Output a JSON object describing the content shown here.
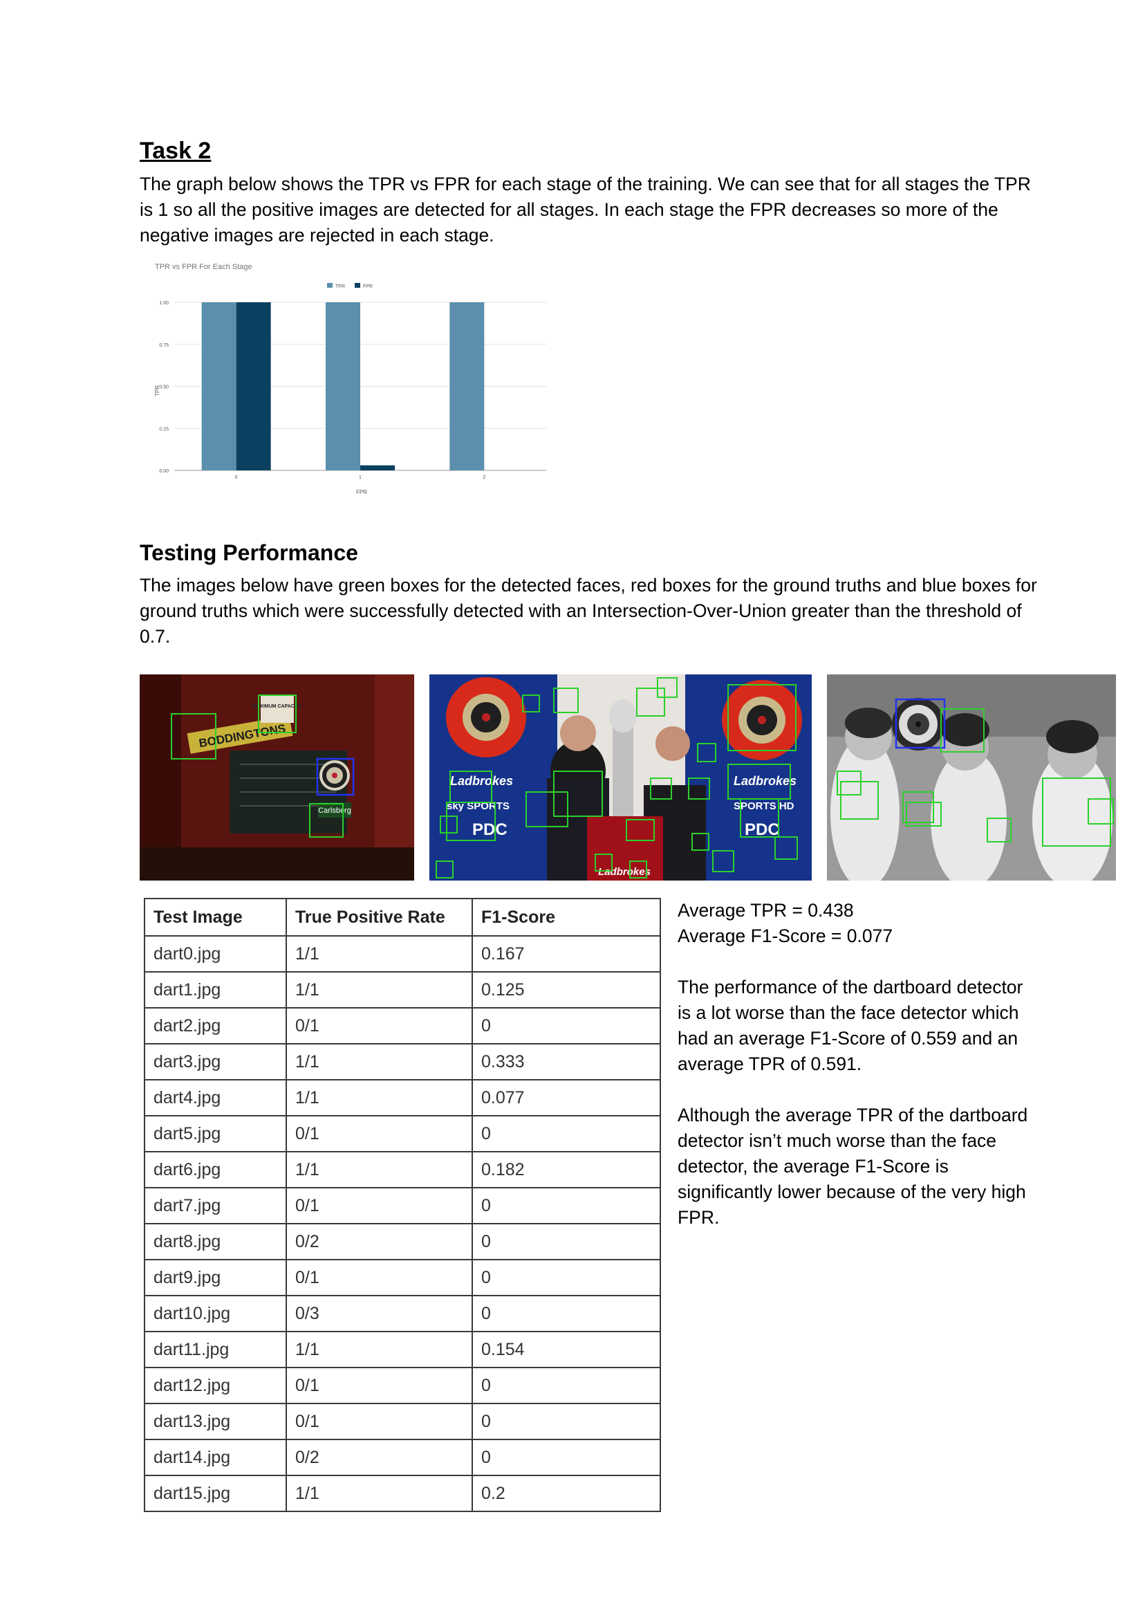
{
  "task2": {
    "heading": "Task 2",
    "paragraph": "The graph below shows the TPR vs FPR for each stage of the training. We can see that for all stages the TPR is 1 so all the positive images are detected for all stages. In each stage the FPR decreases so more of the negative images are rejected in each stage."
  },
  "chart_data": {
    "type": "bar",
    "title": "TPR vs FPR For Each Stage",
    "xlabel": "FPR",
    "ylabel": "TPR",
    "categories": [
      "0",
      "1",
      "2"
    ],
    "series": [
      {
        "name": "TPR",
        "values": [
          1.0,
          1.0,
          1.0
        ],
        "color": "#5b8fad"
      },
      {
        "name": "FPR",
        "values": [
          1.0,
          0.03,
          0.0
        ],
        "color": "#0b4060"
      }
    ],
    "ylim": [
      0,
      1
    ],
    "yticks": [
      "0.00",
      "0.25",
      "0.50",
      "0.75",
      "1.00"
    ],
    "grid": true,
    "legend": "top-center"
  },
  "testing": {
    "heading": "Testing Performance",
    "paragraph": "The images below have green boxes for the detected faces, red boxes for the ground truths and blue boxes for ground truths which were successfully detected with an Intersection-Over-Union greater than the threshold of 0.7."
  },
  "photos": {
    "pub_sign": "BODDINGTONS",
    "pub_sign2": "MAXIMUM CAPACITY",
    "pub_beer": "Carlsberg",
    "stage_brand1": "Ladbrokes",
    "stage_brand2": "Ladbrokes",
    "stage_brand3": "Ladbrokes",
    "stage_sky1": "sky SPORTS",
    "stage_sky2": "SPORTS HD",
    "stage_pdc1": "PDC",
    "stage_pdc2": "PDC"
  },
  "table": {
    "headers": [
      "Test Image",
      "True Positive Rate",
      "F1-Score"
    ],
    "rows": [
      [
        "dart0.jpg",
        "1/1",
        "0.167"
      ],
      [
        "dart1.jpg",
        "1/1",
        "0.125"
      ],
      [
        "dart2.jpg",
        "0/1",
        "0"
      ],
      [
        "dart3.jpg",
        "1/1",
        "0.333"
      ],
      [
        "dart4.jpg",
        "1/1",
        "0.077"
      ],
      [
        "dart5.jpg",
        "0/1",
        "0"
      ],
      [
        "dart6.jpg",
        "1/1",
        "0.182"
      ],
      [
        "dart7.jpg",
        "0/1",
        "0"
      ],
      [
        "dart8.jpg",
        "0/2",
        "0"
      ],
      [
        "dart9.jpg",
        "0/1",
        "0"
      ],
      [
        "dart10.jpg",
        "0/3",
        "0"
      ],
      [
        "dart11.jpg",
        "1/1",
        "0.154"
      ],
      [
        "dart12.jpg",
        "0/1",
        "0"
      ],
      [
        "dart13.jpg",
        "0/1",
        "0"
      ],
      [
        "dart14.jpg",
        "0/2",
        "0"
      ],
      [
        "dart15.jpg",
        "1/1",
        "0.2"
      ]
    ]
  },
  "summary": {
    "avg_tpr": "Average TPR  =  0.438",
    "avg_f1": "Average F1-Score  =  0.077",
    "para1": "The performance of the dartboard detector is a lot worse than the face detector which had an average F1-Score of 0.559 and an average TPR of 0.591.",
    "para2": "Although the average TPR of the dartboard detector isn’t much worse than the face detector, the average F1-Score is significantly lower because of the very high FPR."
  }
}
